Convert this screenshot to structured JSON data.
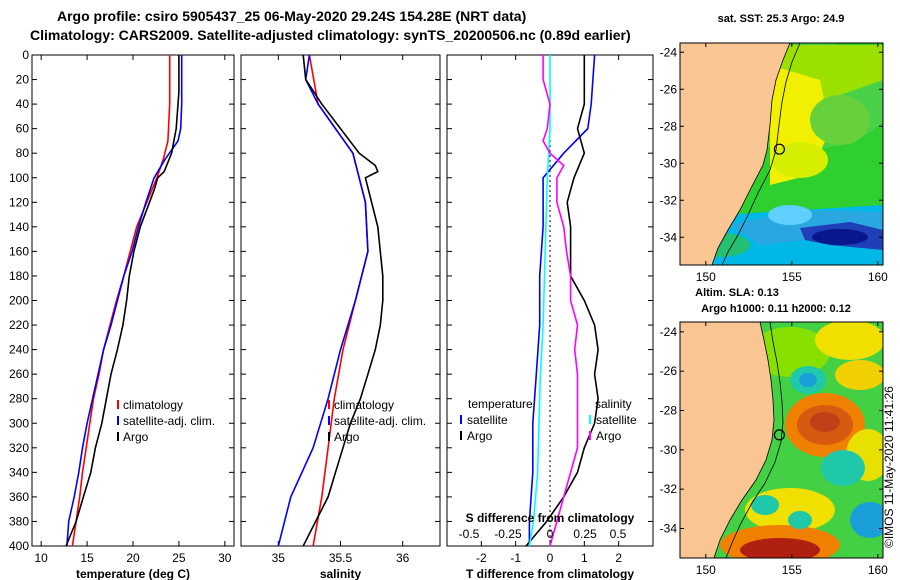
{
  "header": {
    "title_line1": "Argo profile: csiro 5905437_25 06-May-2020 29.24S 154.28E (NRT data)",
    "title_line2": "Climatology: CARS2009. Satellite-adjusted climatology: synTS_20200506.nc (0.89d earlier)"
  },
  "stamp": "©IMOS 11-May-2020 11:41:26",
  "colors": {
    "climatology": "#ff0000",
    "satellite": "#0000ff",
    "argo": "#000000",
    "sal_diff": "#ff00ff",
    "sal_sat": "#00ffff"
  },
  "chart_data": [
    {
      "type": "line",
      "name": "temperature-profile",
      "xlabel": "temperature (deg C)",
      "ylabel": "",
      "xlim": [
        9,
        31
      ],
      "ylim": [
        400,
        0
      ],
      "xticks": [
        10,
        15,
        20,
        25,
        30
      ],
      "yticks": [
        0,
        20,
        40,
        60,
        80,
        100,
        120,
        140,
        160,
        180,
        200,
        220,
        240,
        260,
        280,
        300,
        320,
        340,
        360,
        380,
        400
      ],
      "legend": [
        "climatology",
        "satellite-adj. clim.",
        "Argo"
      ],
      "series": [
        {
          "name": "climatology",
          "color": "#ff0000",
          "y": [
            0,
            40,
            70,
            85,
            100,
            120,
            140,
            160,
            180,
            200,
            220,
            240,
            260,
            280,
            300,
            320,
            340,
            360,
            380,
            400
          ],
          "x": [
            24.0,
            24.0,
            23.8,
            23.3,
            22.6,
            21.5,
            20.4,
            19.7,
            19.0,
            18.2,
            17.5,
            16.8,
            16.3,
            15.7,
            15.3,
            14.9,
            14.5,
            14.2,
            13.8,
            13.4
          ]
        },
        {
          "name": "satellite-adj. clim.",
          "color": "#0000ff",
          "y": [
            0,
            40,
            60,
            70,
            85,
            100,
            120,
            140,
            160,
            180,
            200,
            220,
            240,
            260,
            280,
            300,
            320,
            340,
            360,
            380,
            400
          ],
          "x": [
            25.3,
            25.3,
            25.2,
            24.9,
            23.5,
            22.3,
            21.4,
            20.6,
            19.9,
            19.0,
            18.3,
            17.6,
            16.8,
            16.2,
            15.6,
            15.0,
            14.5,
            14.1,
            13.6,
            13.0,
            12.8
          ]
        },
        {
          "name": "Argo",
          "color": "#000000",
          "y": [
            0,
            30,
            60,
            80,
            95,
            100,
            110,
            120,
            140,
            160,
            180,
            200,
            220,
            240,
            260,
            280,
            300,
            320,
            340,
            360,
            380,
            400
          ],
          "x": [
            25.0,
            25.0,
            24.7,
            24.2,
            23.4,
            22.7,
            22.3,
            21.8,
            20.8,
            20.1,
            19.6,
            19.3,
            18.9,
            18.3,
            17.6,
            17.1,
            16.6,
            15.9,
            15.4,
            14.6,
            13.8,
            12.7
          ]
        }
      ]
    },
    {
      "type": "line",
      "name": "salinity-profile",
      "xlabel": "salinity",
      "ylabel": "",
      "xlim": [
        34.7,
        36.3
      ],
      "ylim": [
        400,
        0
      ],
      "xticks": [
        35,
        35.5,
        36
      ],
      "legend": [
        "climatology",
        "satellite-adj. clim.",
        "Argo"
      ],
      "series": [
        {
          "name": "climatology",
          "color": "#ff0000",
          "y": [
            0,
            40,
            80,
            120,
            160,
            200,
            240,
            280,
            320,
            360,
            400
          ],
          "x": [
            35.25,
            35.32,
            35.6,
            35.7,
            35.72,
            35.62,
            35.52,
            35.45,
            35.4,
            35.35,
            35.28
          ]
        },
        {
          "name": "satellite-adj. clim.",
          "color": "#0000ff",
          "y": [
            0,
            20,
            40,
            80,
            120,
            160,
            200,
            240,
            280,
            320,
            360,
            400
          ],
          "x": [
            35.25,
            35.22,
            35.32,
            35.6,
            35.7,
            35.72,
            35.62,
            35.5,
            35.4,
            35.28,
            35.1,
            35.0
          ]
        },
        {
          "name": "Argo",
          "color": "#000000",
          "y": [
            0,
            20,
            40,
            60,
            80,
            90,
            95,
            100,
            120,
            140,
            160,
            180,
            200,
            220,
            240,
            260,
            280,
            300,
            320,
            340,
            360,
            380,
            400
          ],
          "x": [
            35.2,
            35.22,
            35.35,
            35.5,
            35.65,
            35.78,
            35.8,
            35.7,
            35.75,
            35.8,
            35.82,
            35.84,
            35.84,
            35.82,
            35.78,
            35.72,
            35.66,
            35.58,
            35.52,
            35.46,
            35.4,
            35.3,
            35.2
          ]
        }
      ]
    },
    {
      "type": "line",
      "name": "difference-profile",
      "xlabel": "T difference from climatology",
      "xlabel_top": "S difference from climatology",
      "ylabel": "",
      "xlim": [
        -3,
        3
      ],
      "ylim": [
        400,
        0
      ],
      "xticks": [
        -2,
        -1,
        0,
        1,
        2
      ],
      "xlim_top": [
        -0.75,
        0.75
      ],
      "xticks_top": [
        "-0.5",
        "-0.25",
        "0",
        "0.25",
        "0.5"
      ],
      "legend_temperature_title": "temperature",
      "legend_salinity_title": "salinity",
      "legend": [
        "satellite",
        "Argo",
        "satellite",
        "Argo"
      ],
      "series": [
        {
          "name": "temperature satellite",
          "color": "#0000ff",
          "y": [
            0,
            40,
            60,
            80,
            100,
            140,
            180,
            220,
            260,
            300,
            340,
            380,
            400
          ],
          "x": [
            1.3,
            1.2,
            1.1,
            0.4,
            -0.2,
            -0.2,
            -0.3,
            -0.3,
            -0.4,
            -0.5,
            -0.5,
            -0.6,
            -0.6
          ]
        },
        {
          "name": "temperature Argo",
          "color": "#000000",
          "y": [
            0,
            40,
            60,
            80,
            100,
            120,
            140,
            160,
            180,
            200,
            220,
            240,
            260,
            280,
            300,
            320,
            340,
            360,
            380,
            400
          ],
          "x": [
            1.0,
            1.0,
            0.8,
            1.0,
            0.7,
            0.5,
            0.6,
            0.6,
            0.6,
            1.0,
            1.3,
            1.4,
            1.3,
            1.4,
            1.3,
            1.0,
            0.8,
            0.4,
            -0.1,
            -0.7
          ]
        },
        {
          "name": "salinity satellite",
          "color": "#00ffff",
          "y": [
            0,
            60,
            100,
            140,
            180,
            220,
            260,
            300,
            340,
            380,
            400
          ],
          "x": [
            0.0,
            0.0,
            -0.02,
            -0.03,
            -0.04,
            -0.05,
            -0.07,
            -0.08,
            -0.09,
            -0.12,
            -0.15
          ]
        },
        {
          "name": "salinity Argo",
          "color": "#ff00ff",
          "y": [
            0,
            20,
            40,
            60,
            70,
            80,
            90,
            100,
            120,
            140,
            160,
            180,
            200,
            220,
            240,
            260,
            280,
            300,
            320,
            340,
            360,
            380,
            400
          ],
          "x": [
            -0.05,
            -0.05,
            0.0,
            -0.02,
            -0.05,
            0.0,
            0.1,
            0.05,
            0.05,
            0.1,
            0.12,
            0.15,
            0.15,
            0.2,
            0.18,
            0.2,
            0.2,
            0.2,
            0.2,
            0.15,
            0.1,
            0.05,
            0.0
          ]
        }
      ]
    },
    {
      "type": "heatmap",
      "name": "sst-map",
      "title": "sat. SST: 25.3 Argo: 24.9",
      "xlim": [
        148.5,
        160.3
      ],
      "ylim": [
        -35.5,
        -23.5
      ],
      "xticks": [
        150,
        155,
        160
      ],
      "yticks": [
        -24,
        -26,
        -28,
        -30,
        -32,
        -34
      ],
      "argo_position": {
        "lon": 154.28,
        "lat": -29.24
      }
    },
    {
      "type": "heatmap",
      "name": "sla-map",
      "title": "Altim. SLA: 0.13",
      "subtitle": "Argo h1000: 0.11 h2000: 0.12",
      "xlim": [
        148.5,
        160.3
      ],
      "ylim": [
        -35.5,
        -23.5
      ],
      "xticks": [
        150,
        155,
        160
      ],
      "yticks": [
        -24,
        -26,
        -28,
        -30,
        -32,
        -34
      ],
      "argo_position": {
        "lon": 154.28,
        "lat": -29.24
      }
    }
  ]
}
